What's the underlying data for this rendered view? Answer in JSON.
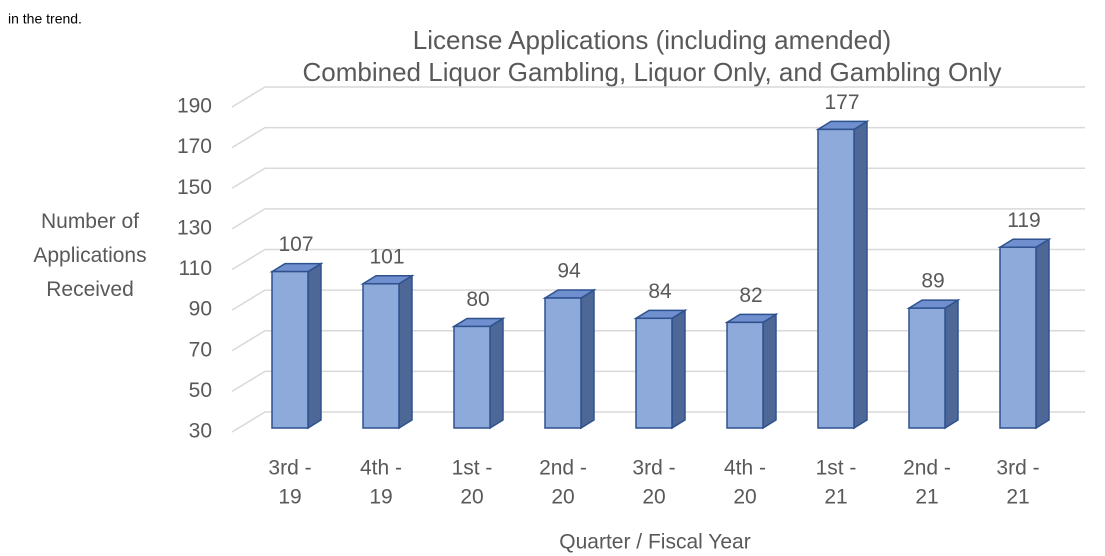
{
  "chart_data": {
    "type": "bar3d",
    "annotation": "in the trend.",
    "title": "License Applications (including amended)",
    "subtitle": "Combined Liquor Gambling, Liquor Only, and Gambling Only",
    "ylabel": "Number of Applications Received",
    "xlabel": "Quarter / Fiscal Year",
    "categories": [
      "3rd - 19",
      "4th - 19",
      "1st - 20",
      "2nd - 20",
      "3rd - 20",
      "4th - 20",
      "1st - 21",
      "2nd - 21",
      "3rd - 21"
    ],
    "values": [
      107,
      101,
      80,
      94,
      84,
      82,
      177,
      89,
      119
    ],
    "color": "#8eaadb",
    "ylim": [
      30,
      190
    ],
    "yticks": [
      30,
      50,
      70,
      90,
      110,
      130,
      150,
      170,
      190
    ],
    "grid": true
  }
}
